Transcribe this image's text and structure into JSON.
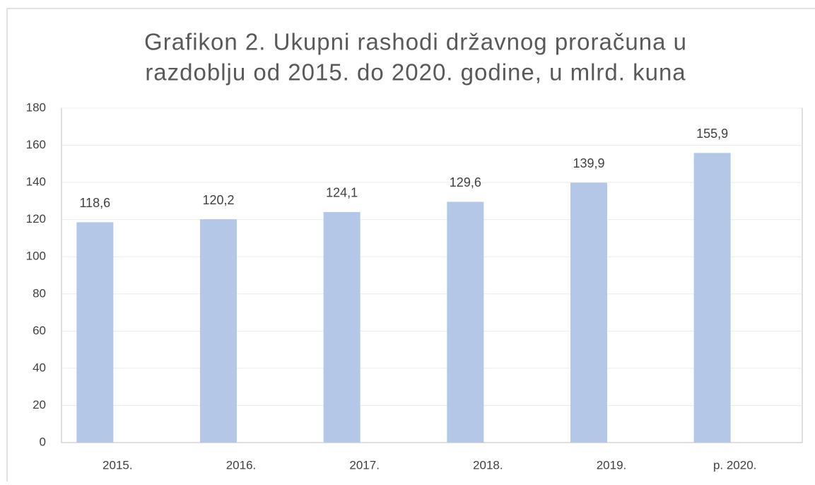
{
  "chart_data": {
    "type": "bar",
    "title": [
      "Grafikon 2. Ukupni rashodi državnog proračuna u",
      "razdoblju od 2015. do 2020. godine, u mlrd. kuna"
    ],
    "categories": [
      "2015.",
      "2016.",
      "2017.",
      "2018.",
      "2019.",
      "p. 2020."
    ],
    "values": [
      118.6,
      120.2,
      124.1,
      129.6,
      139.9,
      155.9
    ],
    "value_labels": [
      "118,6",
      "120,2",
      "124,1",
      "129,6",
      "139,9",
      "155,9"
    ],
    "color": "#b4c7e7",
    "ylim": [
      0,
      180
    ],
    "yticks": [
      0,
      20,
      40,
      60,
      80,
      100,
      120,
      140,
      160,
      180
    ],
    "grid": true
  }
}
